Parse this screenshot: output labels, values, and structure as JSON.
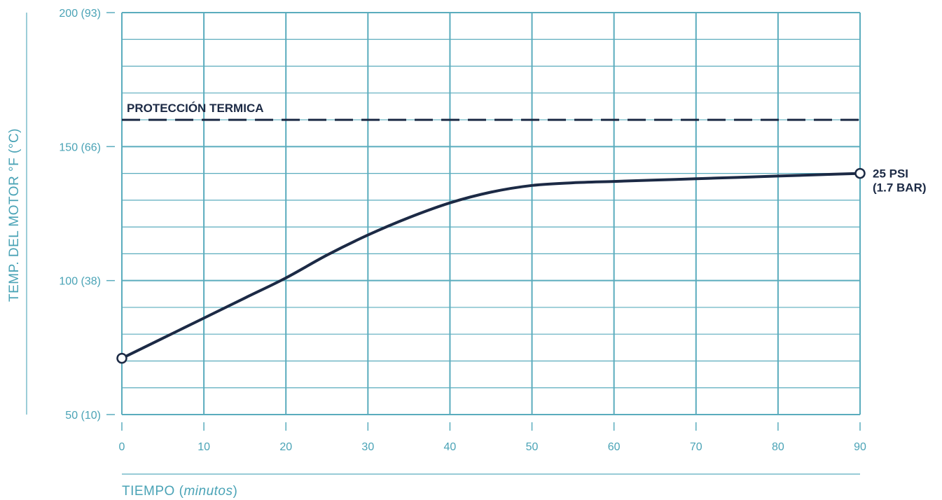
{
  "chart_data": {
    "type": "line",
    "title": "",
    "xlabel": "TIEMPO (",
    "xlabel_unit": "minutos",
    "xlabel_close": ")",
    "ylabel": "TEMP. DEL MOTOR °F  (°C)",
    "xlim": [
      0,
      90
    ],
    "ylim": [
      50,
      200
    ],
    "x_ticks": [
      {
        "value": 0,
        "label": "0"
      },
      {
        "value": 10,
        "label": "10"
      },
      {
        "value": 20,
        "label": "20"
      },
      {
        "value": 30,
        "label": "30"
      },
      {
        "value": 40,
        "label": "40"
      },
      {
        "value": 50,
        "label": "50"
      },
      {
        "value": 60,
        "label": "60"
      },
      {
        "value": 70,
        "label": "70"
      },
      {
        "value": 80,
        "label": "80"
      },
      {
        "value": 90,
        "label": "90"
      }
    ],
    "y_ticks": [
      {
        "value": 50,
        "label": "50 (10)"
      },
      {
        "value": 100,
        "label": "100 (38)"
      },
      {
        "value": 150,
        "label": "150 (66)"
      },
      {
        "value": 200,
        "label": "200 (93)"
      }
    ],
    "y_minor_step": 10,
    "grid": true,
    "threshold": {
      "value": 160,
      "label": "PROTECCIÓN TERMICA"
    },
    "series": [
      {
        "name": "",
        "end_label": [
          "25 PSI",
          "(1.7 BAR)"
        ],
        "x": [
          0,
          5,
          10,
          15,
          20,
          25,
          30,
          35,
          40,
          45,
          50,
          55,
          60,
          65,
          70,
          75,
          80,
          85,
          90
        ],
        "y": [
          71,
          78.5,
          86,
          93.5,
          101,
          109.5,
          117,
          123.5,
          129,
          133,
          135.5,
          136.5,
          137,
          137.5,
          138,
          138.5,
          139,
          139.5,
          140
        ]
      }
    ],
    "colors": {
      "grid": "#5aacbd",
      "axis_text": "#4aa3b6",
      "series": "#1c2a45",
      "threshold": "#1c2a45",
      "annotation_text": "#1c2a45"
    }
  }
}
